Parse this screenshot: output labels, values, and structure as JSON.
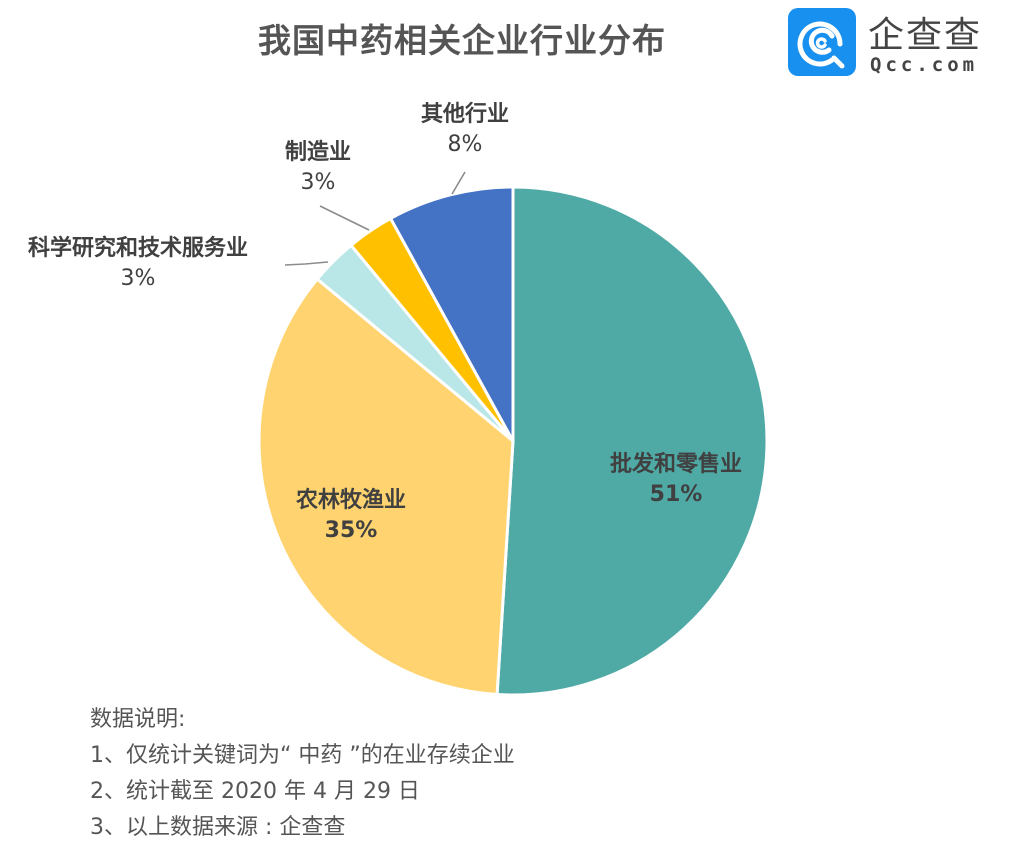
{
  "header": {
    "title": "我国中药相关企业行业分布"
  },
  "logo": {
    "name_cn": "企查查",
    "name_en": "Qcc.com",
    "icon": "qcc-logo-icon",
    "brand_color": "#1890f0"
  },
  "chart_data": {
    "type": "pie",
    "title": "我国中药相关企业行业分布",
    "start_angle_deg": 0,
    "direction": "clockwise",
    "slices": [
      {
        "label": "批发和零售业",
        "value": 51,
        "display": "51%",
        "color": "#4faaa6"
      },
      {
        "label": "农林牧渔业",
        "value": 35,
        "display": "35%",
        "color": "#ffd470"
      },
      {
        "label": "科学研究和技术服务业",
        "value": 3,
        "display": "3%",
        "color": "#b9e6e6"
      },
      {
        "label": "制造业",
        "value": 3,
        "display": "3%",
        "color": "#ffc000"
      },
      {
        "label": "其他行业",
        "value": 8,
        "display": "8%",
        "color": "#4472c4"
      }
    ],
    "legend": "none (data labels with leader lines)"
  },
  "labels": {
    "wholesale": {
      "name": "批发和零售业",
      "pct": "51%"
    },
    "agri": {
      "name": "农林牧渔业",
      "pct": "35%"
    },
    "research": {
      "name": "科学研究和技术服务业",
      "pct": "3%"
    },
    "manufacturing": {
      "name": "制造业",
      "pct": "3%"
    },
    "other": {
      "name": "其他行业",
      "pct": "8%"
    }
  },
  "notes": {
    "heading": "数据说明:",
    "items": [
      "1、仅统计关键词为“ 中药 ”的在业存续企业",
      "2、统计截至 2020 年 4 月 29 日",
      "3、以上数据来源 : 企查查"
    ]
  }
}
